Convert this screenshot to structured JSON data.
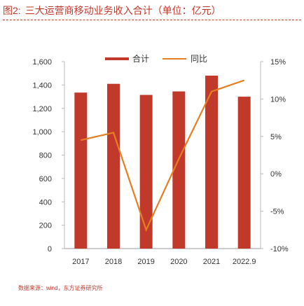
{
  "figure": {
    "number": "图2:",
    "title": "三大运营商移动业务收入合计（单位：亿元）"
  },
  "source": "数据来源：wind，东方证券研究所",
  "colors": {
    "bar": "#c0392b",
    "line": "#e67e22"
  },
  "chart_data": {
    "type": "bar",
    "categories": [
      "2017",
      "2018",
      "2019",
      "2020",
      "2021",
      "2022.9"
    ],
    "series": [
      {
        "name": "合计",
        "type": "bar",
        "axis": "left",
        "values": [
          1335,
          1410,
          1315,
          1345,
          1480,
          1300
        ]
      },
      {
        "name": "同比",
        "type": "line",
        "axis": "right",
        "values": [
          4.5,
          5.5,
          -7.5,
          2.0,
          11.0,
          12.5
        ]
      }
    ],
    "y_left": {
      "min": 0,
      "max": 1600,
      "ticks": [
        "0",
        "200",
        "400",
        "600",
        "800",
        "1,000",
        "1,200",
        "1,400",
        "1,600"
      ]
    },
    "y_right": {
      "min": -10,
      "max": 15,
      "ticks": [
        "-10%",
        "-5%",
        "0%",
        "5%",
        "10%",
        "15%"
      ]
    },
    "legend_position": "top",
    "grid": false
  }
}
